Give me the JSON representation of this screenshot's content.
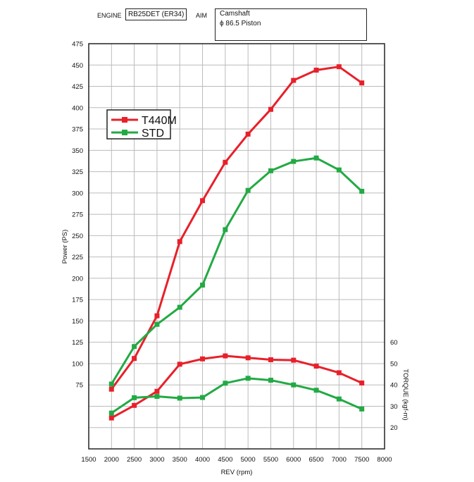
{
  "header": {
    "engine_label": "ENGINE",
    "engine_value": "RB25DET (ER34)",
    "aim_label": "AIM",
    "aim_line1": "Camshaft",
    "aim_line2": "ϕ 86.5 Piston"
  },
  "chart_data": {
    "type": "line",
    "xlabel": "REV (rpm)",
    "ylabel": "Power (PS)",
    "y2label": "TORQUE (kgf-m)",
    "xlim": [
      1500,
      8000
    ],
    "ylim": [
      0,
      475
    ],
    "y2lim": [
      10,
      60
    ],
    "x_ticks": [
      1500,
      2000,
      2500,
      3000,
      3500,
      4000,
      4500,
      5000,
      5500,
      6000,
      6500,
      7000,
      7500,
      8000
    ],
    "y_ticks": [
      75,
      100,
      125,
      150,
      175,
      200,
      225,
      250,
      275,
      300,
      325,
      350,
      375,
      400,
      425,
      450,
      475
    ],
    "y2_ticks": [
      20,
      30,
      40,
      50,
      60
    ],
    "grid": true,
    "legend_position": "top-left",
    "x": [
      2000,
      2500,
      3000,
      3500,
      4000,
      4500,
      5000,
      5500,
      6000,
      6500,
      7000,
      7500
    ],
    "series": [
      {
        "name": "T440M",
        "color": "#e8202a",
        "power": [
          70,
          106,
          156,
          243,
          291,
          336,
          369,
          398,
          432,
          444,
          448,
          429
        ],
        "torque": [
          24.5,
          30.4,
          37.0,
          49.7,
          52.2,
          53.6,
          52.7,
          51.8,
          51.6,
          48.8,
          45.7,
          40.9
        ]
      },
      {
        "name": "STD",
        "color": "#22aa44",
        "power": [
          76,
          120,
          146,
          166,
          192,
          257,
          303,
          326,
          337,
          341,
          327,
          302
        ],
        "torque": [
          26.8,
          34.0,
          34.6,
          33.8,
          34.1,
          40.8,
          43.1,
          42.2,
          40.0,
          37.5,
          33.4,
          28.7
        ]
      }
    ]
  }
}
